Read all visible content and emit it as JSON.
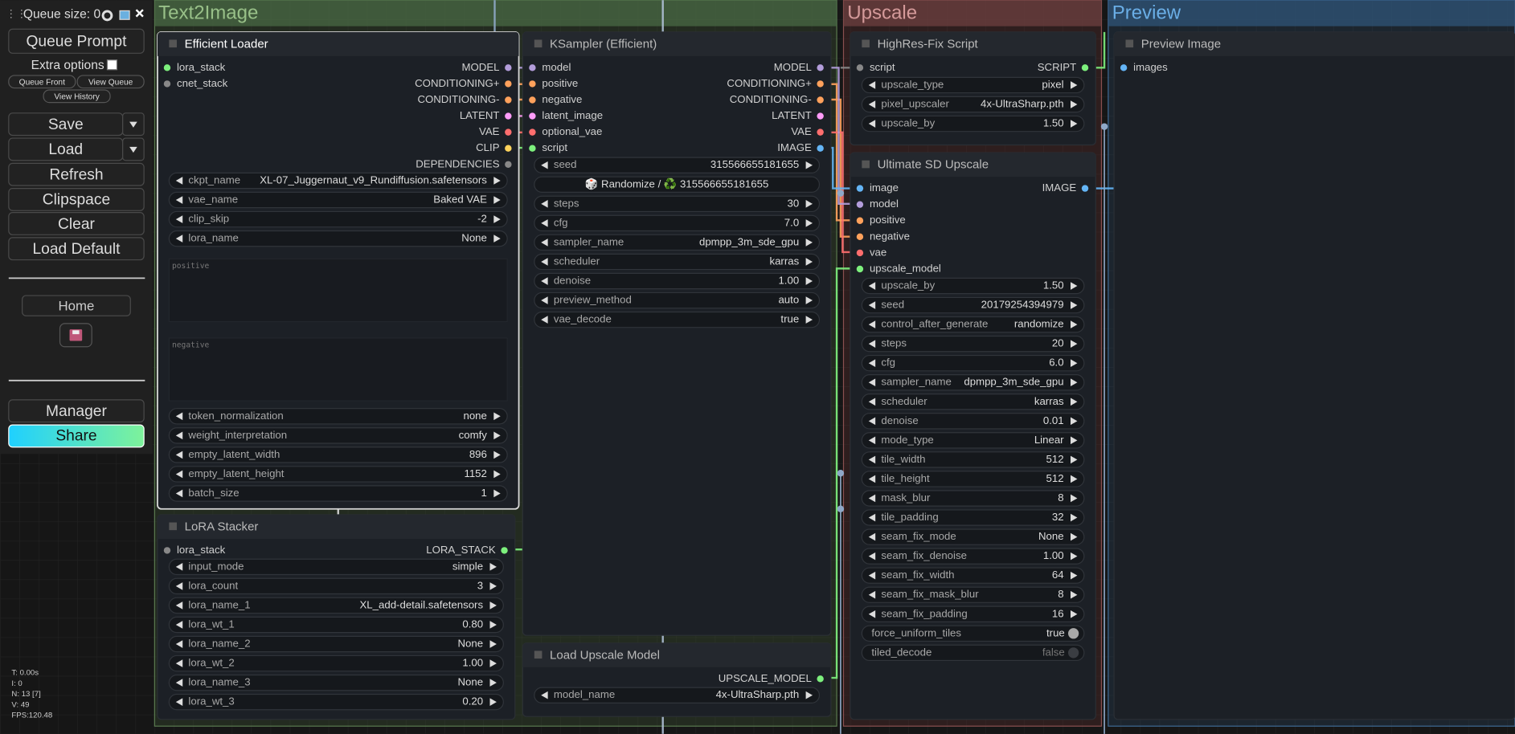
{
  "sidebar": {
    "queue_size": "Queue size: 0",
    "queue_prompt": "Queue Prompt",
    "extra_options": "Extra options",
    "small_buttons": [
      "Queue Front",
      "View Queue",
      "View History"
    ],
    "buttons": [
      "Save",
      "Load",
      "Refresh",
      "Clipspace",
      "Clear",
      "Load Default"
    ],
    "home": "Home",
    "manager": "Manager",
    "share": "Share",
    "stats": [
      "T: 0.00s",
      "I: 0",
      "N: 13 [7]",
      "V: 49",
      "FPS:120.48"
    ]
  },
  "groups": [
    {
      "title": "Text2Image"
    },
    {
      "title": "Upscale"
    },
    {
      "title": "Preview"
    }
  ],
  "nodes": [
    {
      "title": "Efficient Loader",
      "inputs": [
        {
          "name": "lora_stack",
          "color": "#7df07d"
        },
        {
          "name": "cnet_stack",
          "color": "#888888"
        }
      ],
      "outputs": [
        {
          "name": "MODEL",
          "color": "#b39ddb"
        },
        {
          "name": "CONDITIONING+",
          "color": "#ffa15c"
        },
        {
          "name": "CONDITIONING-",
          "color": "#ffa15c"
        },
        {
          "name": "LATENT",
          "color": "#ff9cf9"
        },
        {
          "name": "VAE",
          "color": "#ff6e6e"
        },
        {
          "name": "CLIP",
          "color": "#ffd35c"
        },
        {
          "name": "DEPENDENCIES",
          "color": "#888888"
        }
      ],
      "widgets": [
        {
          "name": "ckpt_name",
          "value": "XL-07_Juggernaut_v9_Rundiffusion.safetensors"
        },
        {
          "name": "vae_name",
          "value": "Baked VAE"
        },
        {
          "name": "clip_skip",
          "value": "-2"
        },
        {
          "name": "lora_name",
          "value": "None"
        },
        {
          "placeholder": "positive"
        },
        {
          "placeholder": "negative"
        },
        {
          "name": "token_normalization",
          "value": "none"
        },
        {
          "name": "weight_interpretation",
          "value": "comfy"
        },
        {
          "name": "empty_latent_width",
          "value": "896"
        },
        {
          "name": "empty_latent_height",
          "value": "1152"
        },
        {
          "name": "batch_size",
          "value": "1"
        }
      ]
    },
    {
      "title": "LoRA Stacker",
      "inputs": [
        {
          "name": "lora_stack",
          "color": "#888888"
        }
      ],
      "outputs": [
        {
          "name": "LORA_STACK",
          "color": "#7df07d"
        }
      ],
      "widgets": [
        {
          "name": "input_mode",
          "value": "simple"
        },
        {
          "name": "lora_count",
          "value": "3"
        },
        {
          "name": "lora_name_1",
          "value": "XL_add-detail.safetensors"
        },
        {
          "name": "lora_wt_1",
          "value": "0.80"
        },
        {
          "name": "lora_name_2",
          "value": "None"
        },
        {
          "name": "lora_wt_2",
          "value": "1.00"
        },
        {
          "name": "lora_name_3",
          "value": "None"
        },
        {
          "name": "lora_wt_3",
          "value": "0.20"
        }
      ]
    },
    {
      "title": "KSampler (Efficient)",
      "inputs": [
        {
          "name": "model",
          "color": "#b39ddb"
        },
        {
          "name": "positive",
          "color": "#ffa15c"
        },
        {
          "name": "negative",
          "color": "#ffa15c"
        },
        {
          "name": "latent_image",
          "color": "#ff9cf9"
        },
        {
          "name": "optional_vae",
          "color": "#ff6e6e"
        },
        {
          "name": "script",
          "color": "#7df07d"
        }
      ],
      "outputs": [
        {
          "name": "MODEL",
          "color": "#b39ddb"
        },
        {
          "name": "CONDITIONING+",
          "color": "#ffa15c"
        },
        {
          "name": "CONDITIONING-",
          "color": "#ffa15c"
        },
        {
          "name": "LATENT",
          "color": "#ff9cf9"
        },
        {
          "name": "VAE",
          "color": "#ff6e6e"
        },
        {
          "name": "IMAGE",
          "color": "#64b5f6"
        }
      ],
      "widgets": [
        {
          "name": "seed",
          "value": "315566655181655"
        },
        {
          "button": "🎲 Randomize / ♻️ 315566655181655"
        },
        {
          "name": "steps",
          "value": "30"
        },
        {
          "name": "cfg",
          "value": "7.0"
        },
        {
          "name": "sampler_name",
          "value": "dpmpp_3m_sde_gpu"
        },
        {
          "name": "scheduler",
          "value": "karras"
        },
        {
          "name": "denoise",
          "value": "1.00"
        },
        {
          "name": "preview_method",
          "value": "auto"
        },
        {
          "name": "vae_decode",
          "value": "true"
        }
      ]
    },
    {
      "title": "Load Upscale Model",
      "inputs": [],
      "outputs": [
        {
          "name": "UPSCALE_MODEL",
          "color": "#7df07d"
        }
      ],
      "widgets": [
        {
          "name": "model_name",
          "value": "4x-UltraSharp.pth"
        }
      ]
    },
    {
      "title": "HighRes-Fix Script",
      "inputs": [
        {
          "name": "script",
          "color": "#888888"
        }
      ],
      "outputs": [
        {
          "name": "SCRIPT",
          "color": "#7df07d"
        }
      ],
      "widgets": [
        {
          "name": "upscale_type",
          "value": "pixel"
        },
        {
          "name": "pixel_upscaler",
          "value": "4x-UltraSharp.pth"
        },
        {
          "name": "upscale_by",
          "value": "1.50"
        }
      ]
    },
    {
      "title": "Ultimate SD Upscale",
      "inputs": [
        {
          "name": "image",
          "color": "#64b5f6"
        },
        {
          "name": "model",
          "color": "#b39ddb"
        },
        {
          "name": "positive",
          "color": "#ffa15c"
        },
        {
          "name": "negative",
          "color": "#ffa15c"
        },
        {
          "name": "vae",
          "color": "#ff6e6e"
        },
        {
          "name": "upscale_model",
          "color": "#7df07d"
        }
      ],
      "outputs": [
        {
          "name": "IMAGE",
          "color": "#64b5f6"
        }
      ],
      "widgets": [
        {
          "name": "upscale_by",
          "value": "1.50"
        },
        {
          "name": "seed",
          "value": "20179254394979"
        },
        {
          "name": "control_after_generate",
          "value": "randomize"
        },
        {
          "name": "steps",
          "value": "20"
        },
        {
          "name": "cfg",
          "value": "6.0"
        },
        {
          "name": "sampler_name",
          "value": "dpmpp_3m_sde_gpu"
        },
        {
          "name": "scheduler",
          "value": "karras"
        },
        {
          "name": "denoise",
          "value": "0.01"
        },
        {
          "name": "mode_type",
          "value": "Linear"
        },
        {
          "name": "tile_width",
          "value": "512"
        },
        {
          "name": "tile_height",
          "value": "512"
        },
        {
          "name": "mask_blur",
          "value": "8"
        },
        {
          "name": "tile_padding",
          "value": "32"
        },
        {
          "name": "seam_fix_mode",
          "value": "None"
        },
        {
          "name": "seam_fix_denoise",
          "value": "1.00"
        },
        {
          "name": "seam_fix_width",
          "value": "64"
        },
        {
          "name": "seam_fix_mask_blur",
          "value": "8"
        },
        {
          "name": "seam_fix_padding",
          "value": "16"
        },
        {
          "name": "force_uniform_tiles",
          "value": "true",
          "toggle": true
        },
        {
          "name": "tiled_decode",
          "value": "false",
          "toggle": true
        }
      ]
    },
    {
      "title": "Preview Image",
      "inputs": [
        {
          "name": "images",
          "color": "#64b5f6"
        }
      ],
      "outputs": [],
      "widgets": []
    }
  ]
}
